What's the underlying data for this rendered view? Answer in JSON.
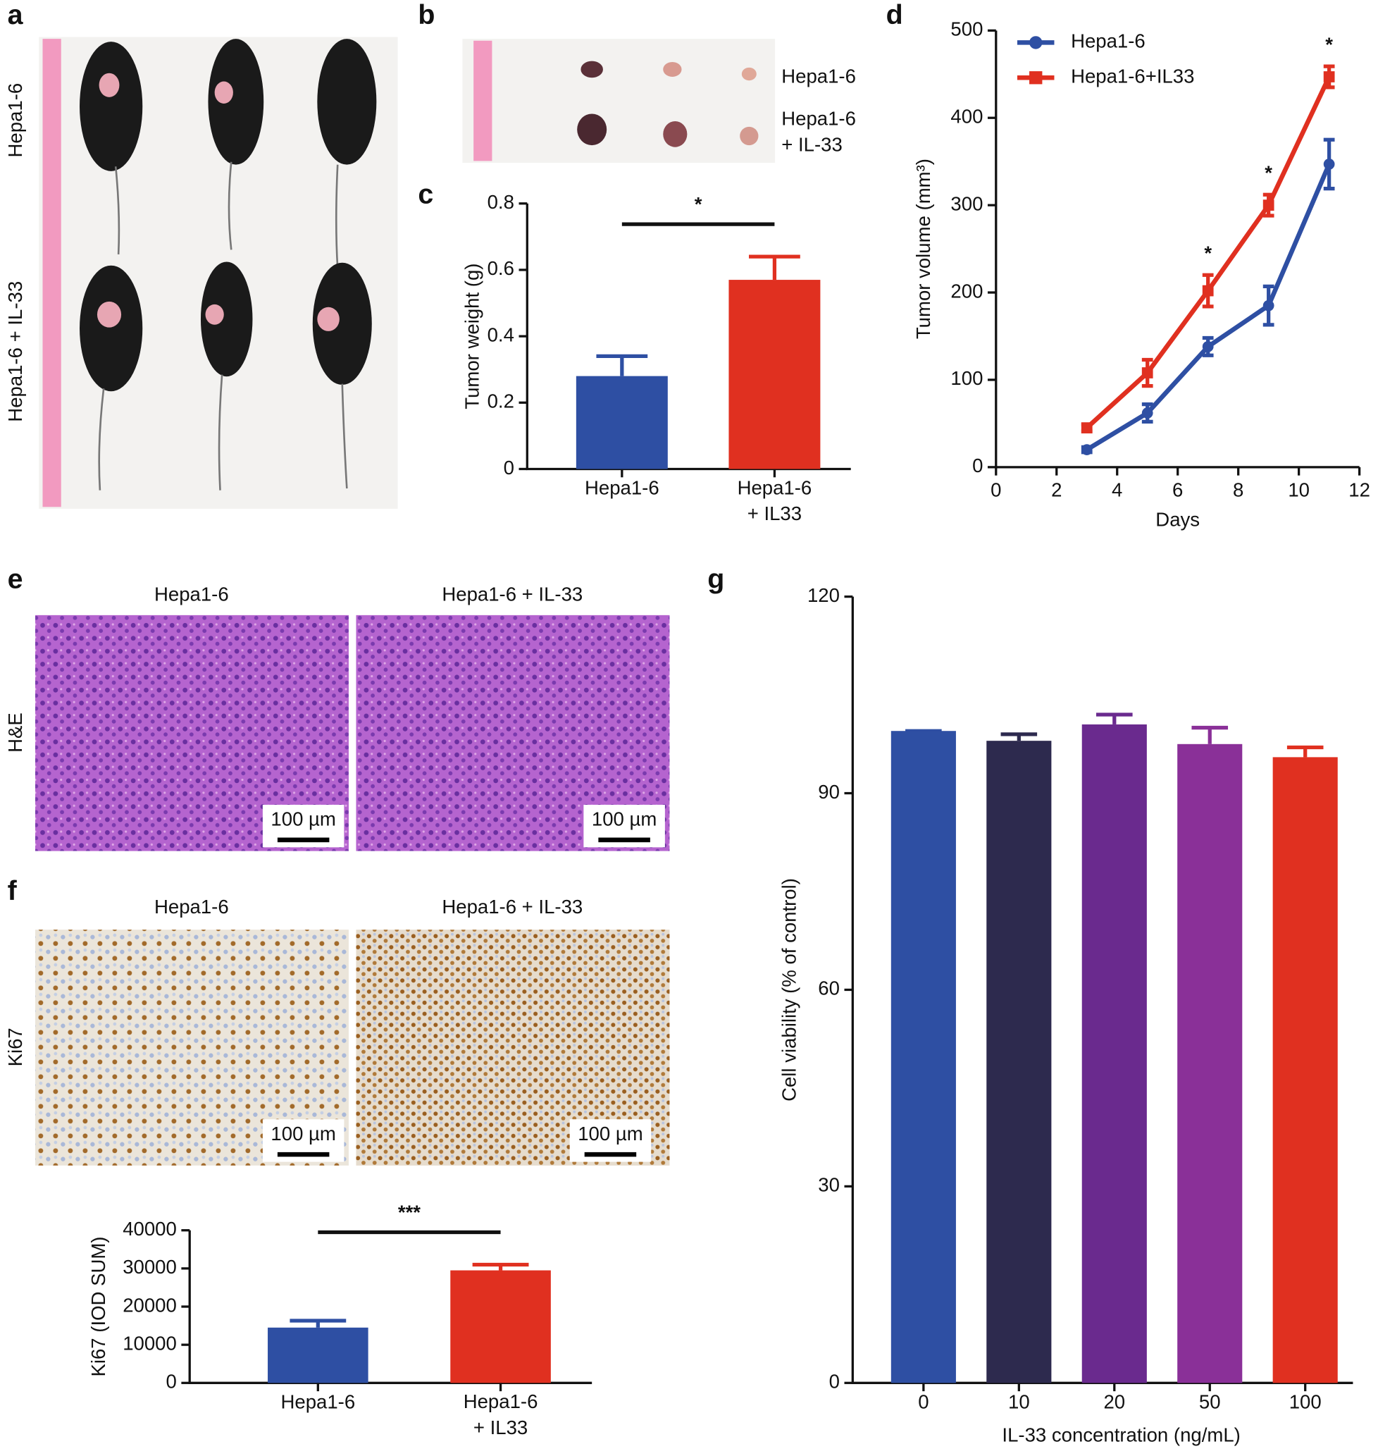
{
  "figure": {
    "panel_labels": [
      "a",
      "b",
      "c",
      "d",
      "e",
      "f",
      "g"
    ],
    "a": {
      "rows": [
        "Hepa1-6",
        "Hepa1-6 + IL-33"
      ]
    },
    "b": {
      "rows": [
        "Hepa1-6",
        "Hepa1-6\n+ IL-33"
      ]
    },
    "e": {
      "columns": [
        "Hepa1-6",
        "Hepa1-6 + IL-33"
      ],
      "row": "H&E",
      "scale_bars": [
        "100 µm",
        "100 µm"
      ]
    },
    "f": {
      "columns": [
        "Hepa1-6",
        "Hepa1-6 + IL-33"
      ],
      "row": "Ki67",
      "scale_bars": [
        "100 µm",
        "100 µm"
      ]
    }
  },
  "chart_data": [
    {
      "type": "bar",
      "categories": [
        "Hepa1-6",
        "Hepa1-6\n+ IL33"
      ],
      "values": [
        0.28,
        0.57
      ],
      "errors": [
        0.06,
        0.07
      ],
      "colors": [
        "#2e4fa3",
        "#e03020"
      ],
      "ylabel": "Tumor weight (g)",
      "ylim": [
        0,
        0.8
      ],
      "yticks": [
        0,
        0.2,
        0.4,
        0.6,
        0.8
      ],
      "annotation": "*"
    },
    {
      "type": "line",
      "x": [
        3,
        5,
        7,
        9,
        11
      ],
      "xlabel": "Days",
      "ylabel": "Tumor volume (mm³)",
      "series": [
        {
          "name": "Hepa1-6",
          "color": "#2e4fa3",
          "marker": "circle",
          "values": [
            20,
            62,
            138,
            185,
            347
          ],
          "errors": [
            3,
            10,
            10,
            22,
            28
          ]
        },
        {
          "name": "Hepa1-6+IL33",
          "color": "#e03020",
          "marker": "square",
          "values": [
            45,
            108,
            202,
            300,
            447
          ],
          "errors": [
            4,
            15,
            18,
            12,
            12
          ]
        }
      ],
      "xlim": [
        0,
        12
      ],
      "xticks": [
        0,
        2,
        4,
        6,
        8,
        10,
        12
      ],
      "ylim": [
        0,
        500
      ],
      "yticks": [
        0,
        100,
        200,
        300,
        400,
        500
      ],
      "annotations": [
        {
          "text": "*",
          "x": 7
        },
        {
          "text": "*",
          "x": 9
        },
        {
          "text": "*",
          "x": 11
        }
      ],
      "legend": "upper-left"
    },
    {
      "type": "bar",
      "categories": [
        "Hepa1-6",
        "Hepa1-6\n+ IL33"
      ],
      "values": [
        14500,
        29500
      ],
      "errors": [
        1800,
        1500
      ],
      "colors": [
        "#2e4fa3",
        "#e03020"
      ],
      "ylabel": "Ki67 (IOD SUM)",
      "ylim": [
        0,
        40000
      ],
      "yticks": [
        0,
        10000,
        20000,
        30000,
        40000
      ],
      "annotation": "***"
    },
    {
      "type": "bar",
      "categories": [
        "0",
        "10",
        "20",
        "50",
        "100"
      ],
      "values": [
        99.5,
        98,
        100.5,
        97.5,
        95.5
      ],
      "errors": [
        0,
        1,
        1.5,
        2.5,
        1.5
      ],
      "colors": [
        "#2e4fa3",
        "#2d2a4e",
        "#6a2a8e",
        "#8a3098",
        "#e03020"
      ],
      "xlabel": "IL-33 concentration (ng/mL)",
      "ylabel": "Cell viability (% of control)",
      "ylim": [
        0,
        120
      ],
      "yticks": [
        0,
        30,
        60,
        90,
        120
      ]
    }
  ]
}
